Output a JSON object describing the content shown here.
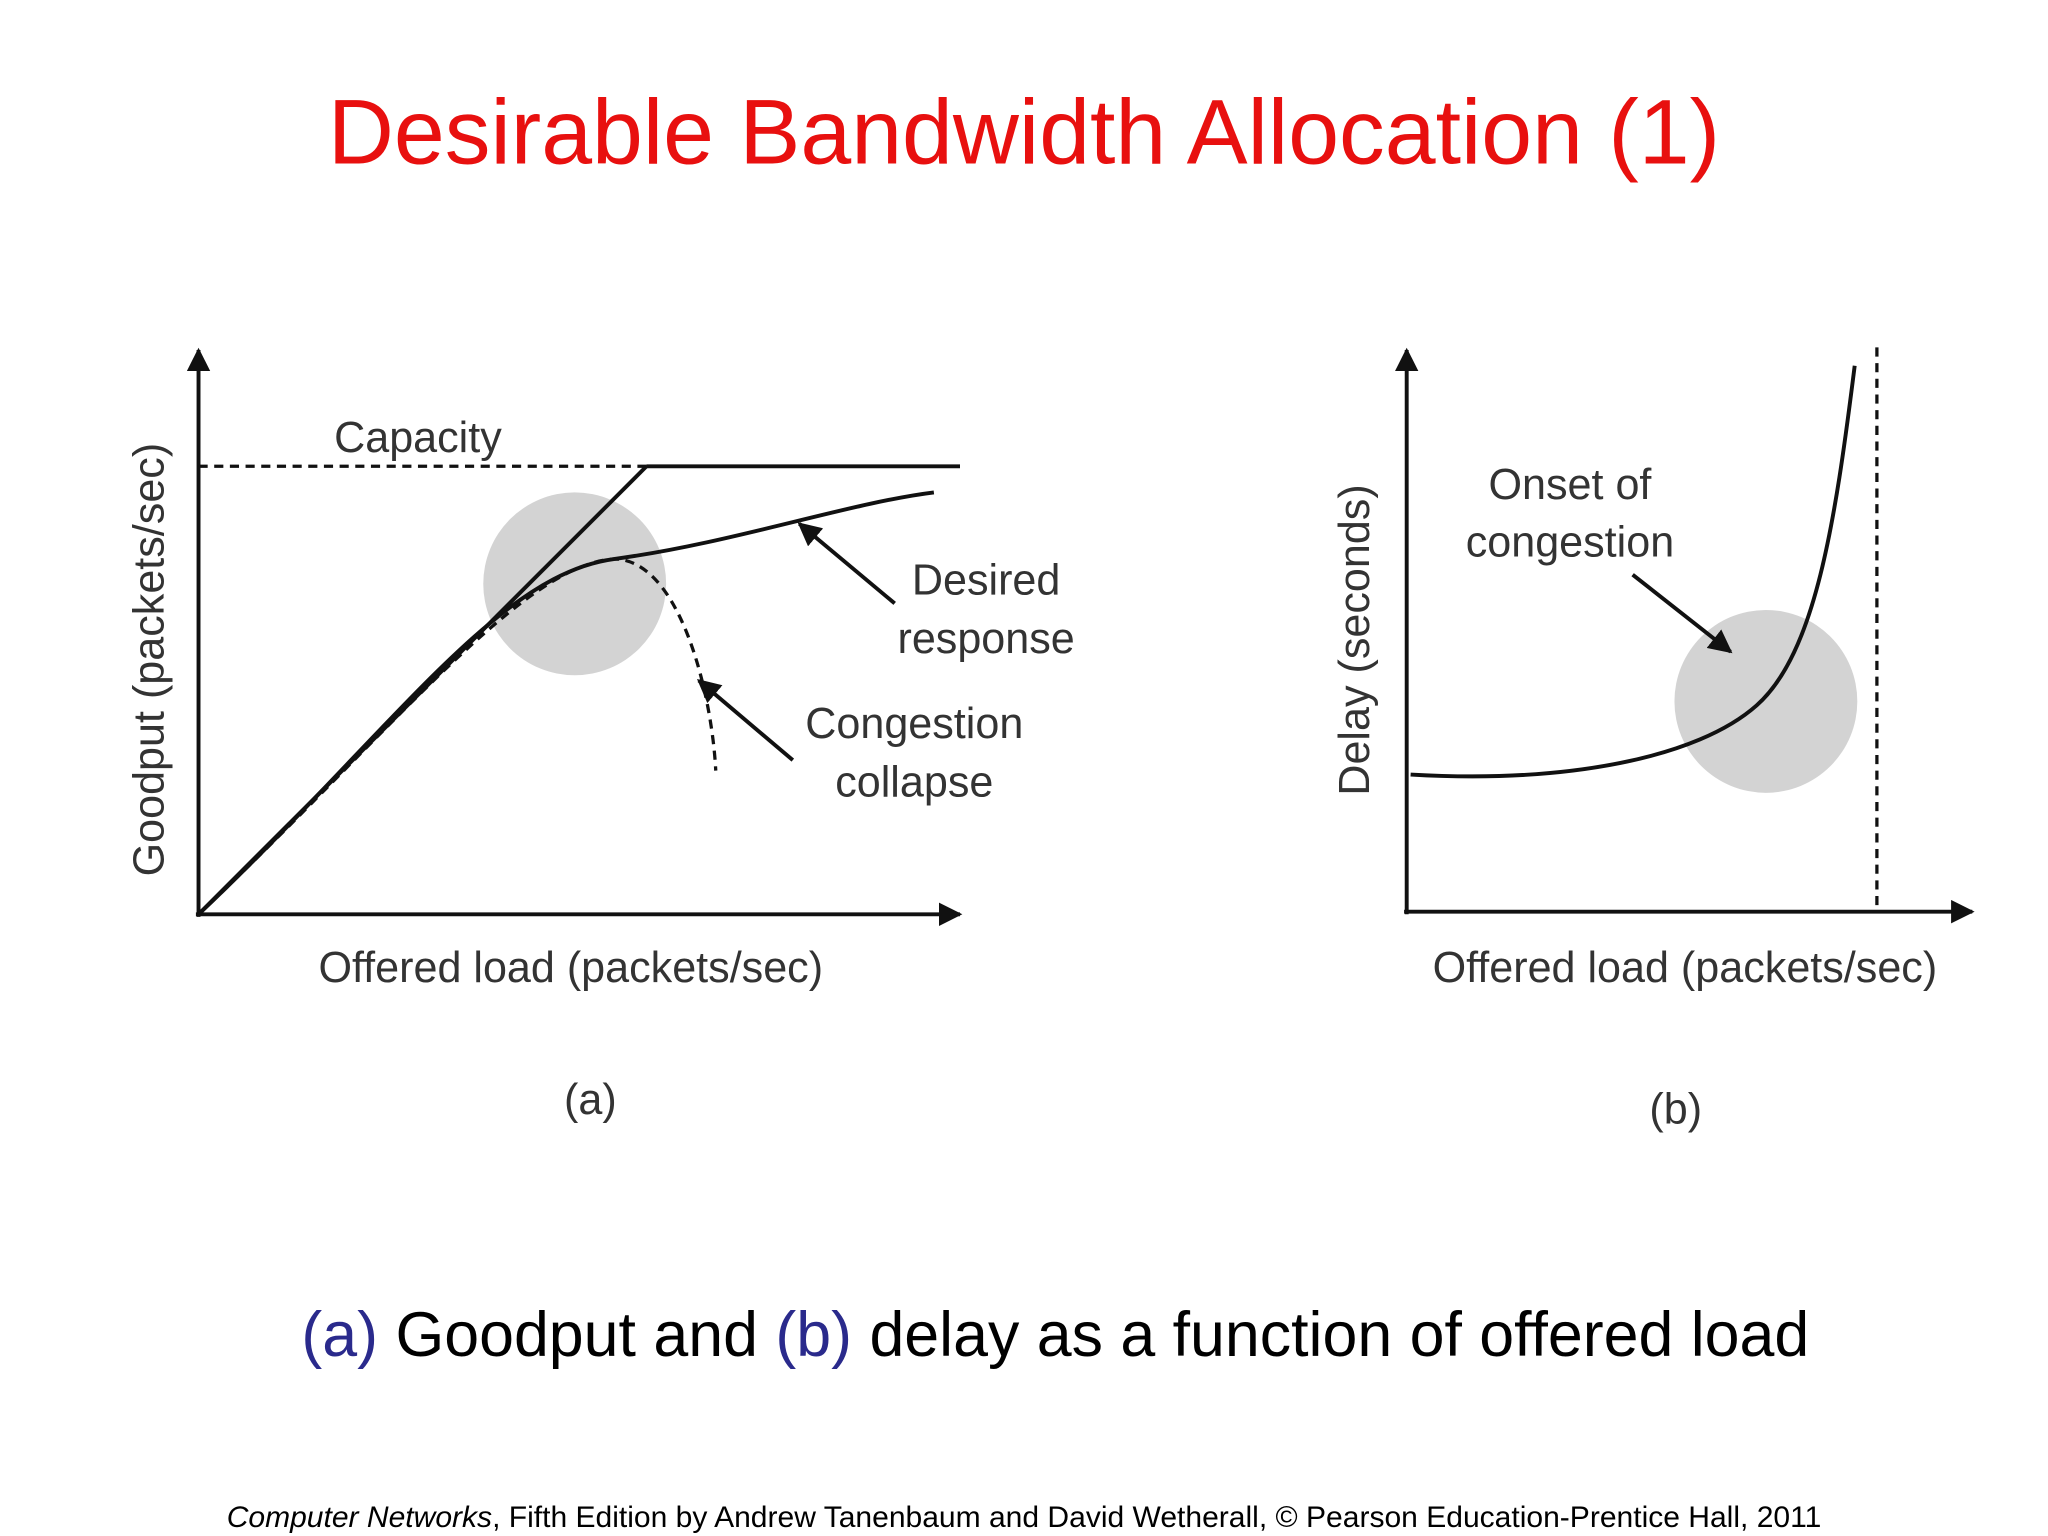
{
  "title": "Desirable Bandwidth Allocation (1)",
  "figure_a": {
    "y_label": "Goodput (packets/sec)",
    "x_label": "Offered load (packets/sec)",
    "capacity_label": "Capacity",
    "desired_label": [
      "Desired",
      "response"
    ],
    "collapse_label": [
      "Congestion",
      "collapse"
    ],
    "panel_label": "(a)"
  },
  "figure_b": {
    "y_label": "Delay (seconds)",
    "x_label": "Offered load (packets/sec)",
    "onset_label": [
      "Onset of",
      "congestion"
    ],
    "panel_label": "(b)"
  },
  "caption": {
    "a_ref": "(a)",
    "text1": "Goodput and",
    "b_ref": "(b)",
    "text2": "delay as a function of offered load"
  },
  "footer": {
    "book": "Computer Networks",
    "rest": ", Fifth Edition by Andrew Tanenbaum and David Wetherall, © Pearson Education-Prentice Hall, 2011"
  }
}
